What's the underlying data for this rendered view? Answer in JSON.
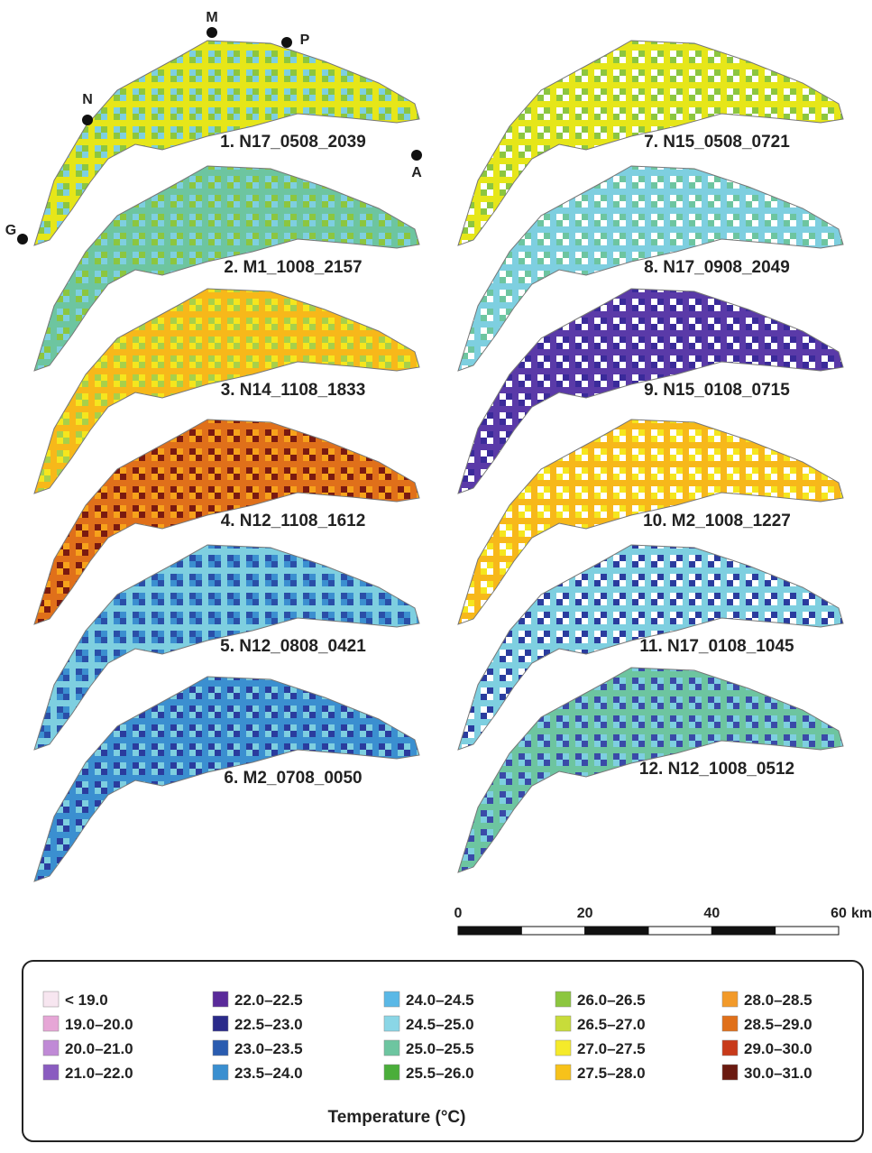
{
  "stations": [
    {
      "label": "M"
    },
    {
      "label": "P"
    },
    {
      "label": "N"
    },
    {
      "label": "A"
    },
    {
      "label": "G"
    }
  ],
  "maps": [
    {
      "label": "1. N17_0508_2039",
      "colors": [
        "#8cc63f",
        "#e6e619",
        "#7ecfe0"
      ]
    },
    {
      "label": "2. M1_1008_2157",
      "colors": [
        "#8cc63f",
        "#6dc5a0",
        "#7ecfe0"
      ]
    },
    {
      "label": "3. N14_1108_1833",
      "colors": [
        "#f5e61e",
        "#f7b81a",
        "#a8d04a"
      ]
    },
    {
      "label": "4. N12_1108_1612",
      "colors": [
        "#f7a21b",
        "#e0701a",
        "#7a1a10"
      ]
    },
    {
      "label": "5. N12_0808_0421",
      "colors": [
        "#3b8fd0",
        "#7ecfe0",
        "#2a4fa8"
      ]
    },
    {
      "label": "6. M2_0708_0050",
      "colors": [
        "#7ecfe0",
        "#3b8fd0",
        "#2a3c9e"
      ]
    },
    {
      "label": "7. N15_0508_0721",
      "colors": [
        "#8cc63f",
        "#e6e619",
        "#ffffff"
      ]
    },
    {
      "label": "8. N17_0908_2049",
      "colors": [
        "#6dc5a0",
        "#7ecfe0",
        "#ffffff"
      ]
    },
    {
      "label": "9. N15_0108_0715",
      "colors": [
        "#3a2a9a",
        "#5a3aa8",
        "#ffffff"
      ]
    },
    {
      "label": "10. M2_1008_1227",
      "colors": [
        "#f5e61e",
        "#f7b81a",
        "#ffffff"
      ]
    },
    {
      "label": "11. N17_0108_1045",
      "colors": [
        "#2a3c9e",
        "#7ecfe0",
        "#ffffff"
      ]
    },
    {
      "label": "12. N12_1008_0512",
      "colors": [
        "#7ecfe0",
        "#6dc5a0",
        "#3a4aa8"
      ]
    }
  ],
  "scale_bar": {
    "ticks": [
      0,
      20,
      40,
      60
    ],
    "unit": "km"
  },
  "legend": {
    "title": "Temperature (°C)",
    "items": [
      {
        "label": "< 19.0",
        "color": "#f7e6f0"
      },
      {
        "label": "19.0–20.0",
        "color": "#e6a6d6"
      },
      {
        "label": "20.0–21.0",
        "color": "#c08ad6"
      },
      {
        "label": "21.0–22.0",
        "color": "#8a5cc0"
      },
      {
        "label": "22.0–22.5",
        "color": "#5a2a9a"
      },
      {
        "label": "22.5–23.0",
        "color": "#2a2a8a"
      },
      {
        "label": "23.0–23.5",
        "color": "#2a5cb0"
      },
      {
        "label": "23.5–24.0",
        "color": "#3a8fd0"
      },
      {
        "label": "24.0–24.5",
        "color": "#5ab8e6"
      },
      {
        "label": "24.5–25.0",
        "color": "#8ad6e6"
      },
      {
        "label": "25.0–25.5",
        "color": "#6dc5a0"
      },
      {
        "label": "25.5–26.0",
        "color": "#4aae3a"
      },
      {
        "label": "26.0–26.5",
        "color": "#8cc63f"
      },
      {
        "label": "26.5–27.0",
        "color": "#c8dc3a"
      },
      {
        "label": "27.0–27.5",
        "color": "#f5ea2a"
      },
      {
        "label": "27.5–28.0",
        "color": "#f7c21a"
      },
      {
        "label": "28.0–28.5",
        "color": "#f29a2a"
      },
      {
        "label": "28.5–29.0",
        "color": "#e0701a"
      },
      {
        "label": "29.0–30.0",
        "color": "#c83a1a"
      },
      {
        "label": "30.0–31.0",
        "color": "#6a1a10"
      }
    ]
  }
}
